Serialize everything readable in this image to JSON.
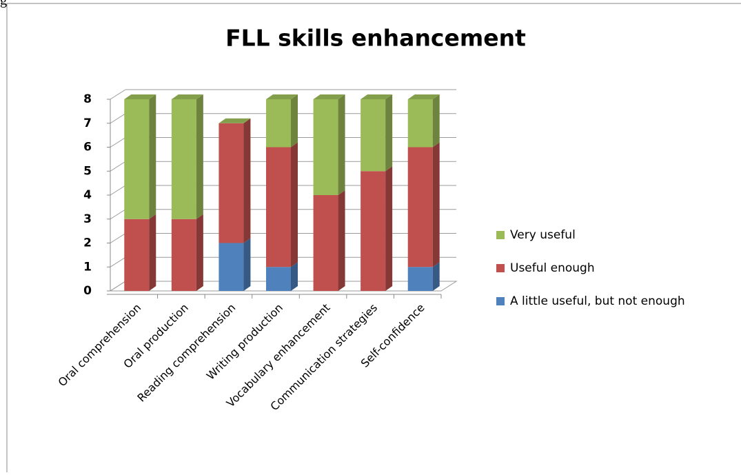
{
  "caption": "g",
  "chart_data": {
    "type": "bar3d_stacked",
    "title": "FLL skills enhancement",
    "categories": [
      "Oral comprehension",
      "Oral production",
      "Reading comprehension",
      "Writing production",
      "Vocabulary enhancement",
      "Communication strategies",
      "Self-confidence"
    ],
    "series": [
      {
        "name": "A little useful, but not enough",
        "color": "#4f81bd",
        "values": [
          0,
          0,
          2,
          1,
          0,
          0,
          1
        ]
      },
      {
        "name": "Useful enough",
        "color": "#c0504d",
        "values": [
          3,
          3,
          5,
          5,
          4,
          5,
          5
        ]
      },
      {
        "name": "Very useful",
        "color": "#9bbb59",
        "values": [
          5,
          5,
          0,
          2,
          4,
          3,
          2
        ]
      }
    ],
    "ylim": [
      0,
      8
    ],
    "yticks": [
      0,
      1,
      2,
      3,
      4,
      5,
      6,
      7,
      8
    ],
    "grid": true,
    "legend": "right"
  }
}
